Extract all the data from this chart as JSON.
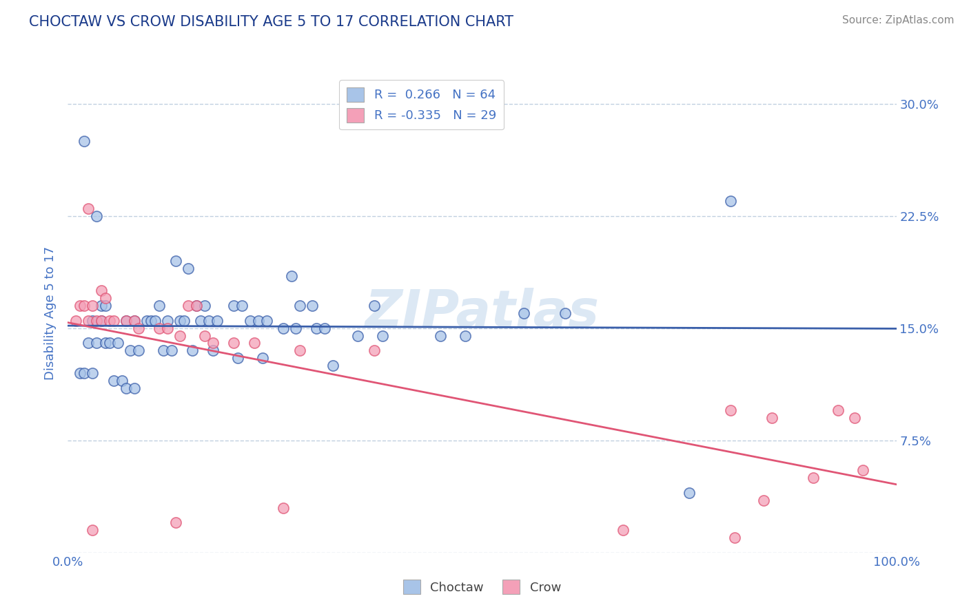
{
  "title": "CHOCTAW VS CROW DISABILITY AGE 5 TO 17 CORRELATION CHART",
  "source": "Source: ZipAtlas.com",
  "ylabel": "Disability Age 5 to 17",
  "xlim": [
    0,
    100
  ],
  "ylim": [
    0,
    32
  ],
  "yticks": [
    0,
    7.5,
    15.0,
    22.5,
    30.0
  ],
  "ytick_labels": [
    "",
    "7.5%",
    "15.0%",
    "22.5%",
    "30.0%"
  ],
  "choctaw_color": "#a8c4e8",
  "crow_color": "#f4a0b8",
  "choctaw_line_color": "#3a5faa",
  "crow_line_color": "#e05575",
  "background_color": "#ffffff",
  "grid_color": "#c0d0e0",
  "title_color": "#1a3a8a",
  "axis_color": "#4472c4",
  "source_color": "#888888",
  "watermark_color": "#dce8f4",
  "choctaw_points": [
    [
      2.0,
      27.5
    ],
    [
      3.5,
      22.5
    ],
    [
      13.0,
      19.5
    ],
    [
      14.5,
      19.0
    ],
    [
      27.0,
      18.5
    ],
    [
      80.0,
      23.5
    ],
    [
      4.0,
      16.5
    ],
    [
      4.5,
      16.5
    ],
    [
      11.0,
      16.5
    ],
    [
      15.5,
      16.5
    ],
    [
      16.5,
      16.5
    ],
    [
      20.0,
      16.5
    ],
    [
      21.0,
      16.5
    ],
    [
      28.0,
      16.5
    ],
    [
      29.5,
      16.5
    ],
    [
      37.0,
      16.5
    ],
    [
      55.0,
      16.0
    ],
    [
      60.0,
      16.0
    ],
    [
      3.0,
      15.5
    ],
    [
      4.0,
      15.5
    ],
    [
      7.0,
      15.5
    ],
    [
      8.0,
      15.5
    ],
    [
      9.5,
      15.5
    ],
    [
      10.0,
      15.5
    ],
    [
      10.5,
      15.5
    ],
    [
      12.0,
      15.5
    ],
    [
      13.5,
      15.5
    ],
    [
      14.0,
      15.5
    ],
    [
      16.0,
      15.5
    ],
    [
      17.0,
      15.5
    ],
    [
      18.0,
      15.5
    ],
    [
      22.0,
      15.5
    ],
    [
      23.0,
      15.5
    ],
    [
      24.0,
      15.5
    ],
    [
      26.0,
      15.0
    ],
    [
      27.5,
      15.0
    ],
    [
      30.0,
      15.0
    ],
    [
      31.0,
      15.0
    ],
    [
      35.0,
      14.5
    ],
    [
      38.0,
      14.5
    ],
    [
      45.0,
      14.5
    ],
    [
      48.0,
      14.5
    ],
    [
      2.5,
      14.0
    ],
    [
      3.5,
      14.0
    ],
    [
      4.5,
      14.0
    ],
    [
      5.0,
      14.0
    ],
    [
      6.0,
      14.0
    ],
    [
      7.5,
      13.5
    ],
    [
      8.5,
      13.5
    ],
    [
      11.5,
      13.5
    ],
    [
      12.5,
      13.5
    ],
    [
      15.0,
      13.5
    ],
    [
      17.5,
      13.5
    ],
    [
      20.5,
      13.0
    ],
    [
      23.5,
      13.0
    ],
    [
      32.0,
      12.5
    ],
    [
      1.5,
      12.0
    ],
    [
      2.0,
      12.0
    ],
    [
      3.0,
      12.0
    ],
    [
      5.5,
      11.5
    ],
    [
      6.5,
      11.5
    ],
    [
      7.0,
      11.0
    ],
    [
      8.0,
      11.0
    ],
    [
      75.0,
      4.0
    ]
  ],
  "crow_points": [
    [
      2.5,
      23.0
    ],
    [
      4.0,
      17.5
    ],
    [
      4.5,
      17.0
    ],
    [
      1.5,
      16.5
    ],
    [
      2.0,
      16.5
    ],
    [
      3.0,
      16.5
    ],
    [
      14.5,
      16.5
    ],
    [
      15.5,
      16.5
    ],
    [
      1.0,
      15.5
    ],
    [
      2.5,
      15.5
    ],
    [
      3.5,
      15.5
    ],
    [
      4.0,
      15.5
    ],
    [
      5.0,
      15.5
    ],
    [
      5.5,
      15.5
    ],
    [
      7.0,
      15.5
    ],
    [
      8.0,
      15.5
    ],
    [
      8.5,
      15.0
    ],
    [
      11.0,
      15.0
    ],
    [
      12.0,
      15.0
    ],
    [
      13.5,
      14.5
    ],
    [
      16.5,
      14.5
    ],
    [
      17.5,
      14.0
    ],
    [
      20.0,
      14.0
    ],
    [
      22.5,
      14.0
    ],
    [
      28.0,
      13.5
    ],
    [
      37.0,
      13.5
    ],
    [
      80.0,
      9.5
    ],
    [
      85.0,
      9.0
    ],
    [
      93.0,
      9.5
    ],
    [
      95.0,
      9.0
    ],
    [
      67.0,
      1.5
    ],
    [
      84.0,
      3.5
    ],
    [
      90.0,
      5.0
    ],
    [
      96.0,
      5.5
    ],
    [
      3.0,
      1.5
    ],
    [
      13.0,
      2.0
    ],
    [
      26.0,
      3.0
    ],
    [
      80.5,
      1.0
    ]
  ]
}
